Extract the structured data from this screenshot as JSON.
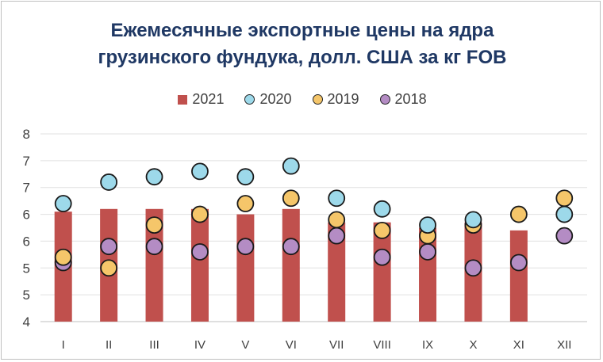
{
  "chart_data": {
    "type": "bar",
    "title_line1": "Ежемесячные экспортные цены на ядра",
    "title_line2": "грузинского фундука, долл. США за кг FOB",
    "categories": [
      "I",
      "II",
      "III",
      "IV",
      "V",
      "VI",
      "VII",
      "VIII",
      "IX",
      "X",
      "XI",
      "XII"
    ],
    "yticks": [
      "4",
      "5",
      "5",
      "6",
      "6",
      "7",
      "7",
      "8"
    ],
    "ylim": [
      4,
      7.5
    ],
    "grid": true,
    "legend_position": "top",
    "bar_series": {
      "name": "2021",
      "color": "#c0504d",
      "values": [
        6.05,
        6.1,
        6.1,
        6.1,
        6.0,
        6.1,
        5.85,
        5.85,
        5.75,
        5.85,
        5.7,
        null
      ]
    },
    "dot_series": [
      {
        "name": "2020",
        "color": "#9dd9ea",
        "values": [
          6.2,
          6.6,
          6.7,
          6.8,
          6.7,
          6.9,
          6.3,
          6.1,
          5.8,
          5.9,
          null,
          6.0
        ]
      },
      {
        "name": "2019",
        "color": "#f5c66a",
        "values": [
          5.2,
          5.0,
          5.8,
          6.0,
          6.2,
          6.3,
          5.9,
          5.7,
          5.6,
          5.8,
          6.0,
          6.3
        ]
      },
      {
        "name": "2018",
        "color": "#b48cc4",
        "values": [
          5.1,
          5.4,
          5.4,
          5.3,
          5.4,
          5.4,
          5.6,
          5.2,
          5.3,
          5.0,
          5.1,
          5.6
        ]
      }
    ]
  }
}
